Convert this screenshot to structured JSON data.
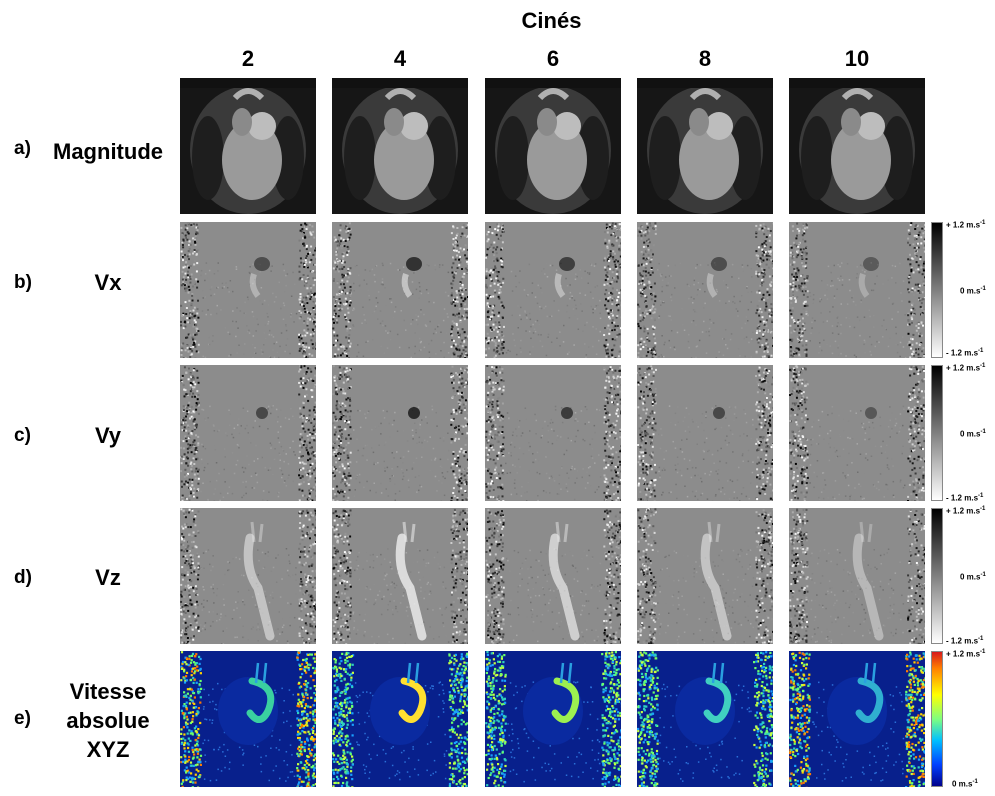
{
  "header": {
    "title": "Cinés"
  },
  "cines": [
    "2",
    "4",
    "6",
    "8",
    "10"
  ],
  "rows": [
    {
      "letter": "a)",
      "name_lines": [
        "Magnitude"
      ],
      "kind": "magnitude",
      "colormap": "gray"
    },
    {
      "letter": "b)",
      "name_lines": [
        "Vx"
      ],
      "kind": "vx",
      "colormap": "gray"
    },
    {
      "letter": "c)",
      "name_lines": [
        "Vy"
      ],
      "kind": "vy",
      "colormap": "gray"
    },
    {
      "letter": "d)",
      "name_lines": [
        "Vz"
      ],
      "kind": "vz",
      "colormap": "gray"
    },
    {
      "letter": "e)",
      "name_lines": [
        "Vitesse",
        "absolue",
        "XYZ"
      ],
      "kind": "abs",
      "colormap": "jet"
    }
  ],
  "colorbars": {
    "velocity": {
      "top": "+ 1.2 m.s",
      "mid": "0 m.s",
      "bottom": "- 1.2 m.s",
      "exp": "-1"
    },
    "absolute": {
      "top": "+ 1.2 m.s",
      "bottom": "0 m.s",
      "exp": "-1"
    }
  }
}
